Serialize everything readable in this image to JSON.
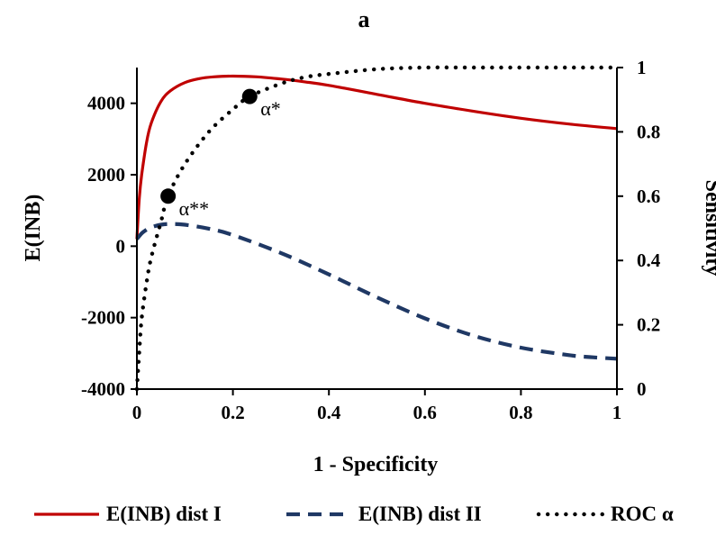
{
  "chart_data": {
    "type": "line",
    "title": "a",
    "xlabel": "1 - Specificity",
    "ylabel_left": "E(INB)",
    "ylabel_right": "Sensitivity",
    "xlim": [
      0,
      1
    ],
    "ylim_left": [
      -4000,
      5000
    ],
    "ylim_right": [
      0,
      1
    ],
    "x_ticks": [
      "0",
      "0.2",
      "0.4",
      "0.6",
      "0.8",
      "1"
    ],
    "y_ticks_left": [
      "-4000",
      "-2000",
      "0",
      "2000",
      "4000"
    ],
    "y_ticks_right": [
      "0",
      "0.2",
      "0.4",
      "0.6",
      "0.8",
      "1"
    ],
    "grid": false,
    "legend_position": "bottom",
    "series": [
      {
        "name": "E(INB) dist I",
        "axis": "left",
        "style": "solid",
        "color": "#c00000",
        "x": [
          0,
          0.005,
          0.01,
          0.02,
          0.03,
          0.05,
          0.07,
          0.1,
          0.13,
          0.16,
          0.2,
          0.25,
          0.3,
          0.35,
          0.4,
          0.5,
          0.6,
          0.7,
          0.8,
          0.9,
          1.0
        ],
        "y": [
          200,
          1350,
          2000,
          2900,
          3450,
          4050,
          4350,
          4580,
          4690,
          4740,
          4760,
          4740,
          4680,
          4600,
          4500,
          4250,
          4000,
          3780,
          3580,
          3420,
          3290
        ]
      },
      {
        "name": "E(INB) dist II",
        "axis": "left",
        "style": "dashed",
        "color": "#1f3864",
        "x": [
          0,
          0.01,
          0.02,
          0.03,
          0.05,
          0.07,
          0.1,
          0.15,
          0.2,
          0.3,
          0.4,
          0.5,
          0.6,
          0.7,
          0.8,
          0.9,
          0.95,
          1.0
        ],
        "y": [
          200,
          360,
          460,
          530,
          600,
          620,
          600,
          490,
          310,
          -190,
          -790,
          -1430,
          -2020,
          -2500,
          -2840,
          -3050,
          -3110,
          -3150
        ]
      },
      {
        "name": "ROC α",
        "axis": "right",
        "style": "dotted",
        "color": "#000000",
        "x": [
          0,
          0.005,
          0.01,
          0.02,
          0.03,
          0.05,
          0.065,
          0.1,
          0.15,
          0.2,
          0.235,
          0.3,
          0.35,
          0.4,
          0.5,
          0.6,
          0.7,
          0.8,
          0.9,
          1.0
        ],
        "y": [
          0,
          0.12,
          0.22,
          0.33,
          0.41,
          0.52,
          0.6,
          0.7,
          0.8,
          0.87,
          0.91,
          0.95,
          0.97,
          0.98,
          0.995,
          1.0,
          1.0,
          1.0,
          1.0,
          1.0
        ]
      }
    ],
    "points": [
      {
        "label": "α**",
        "x": 0.065,
        "y": 0.6,
        "axis": "right"
      },
      {
        "label": "α*",
        "x": 0.235,
        "y": 0.91,
        "axis": "right"
      }
    ]
  }
}
